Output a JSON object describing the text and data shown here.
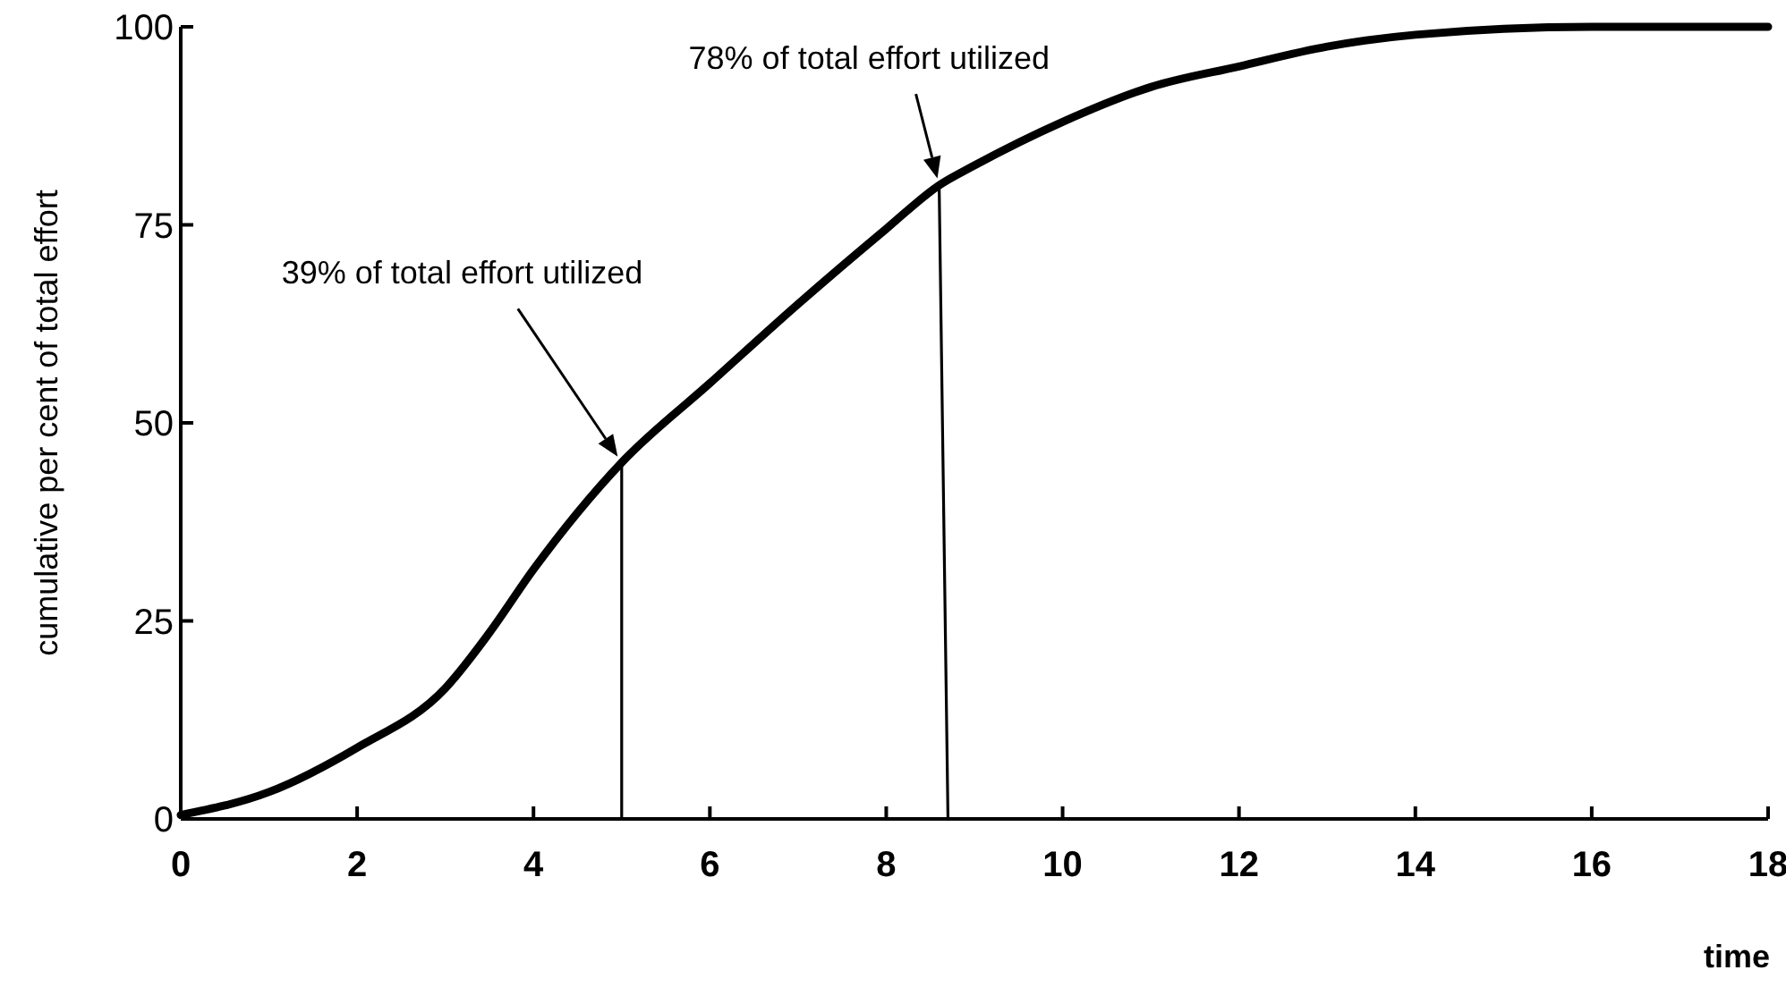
{
  "chart_data": {
    "type": "line",
    "xlabel": "time",
    "ylabel": "cumulative per cent of total effort",
    "xlim": [
      0,
      18
    ],
    "ylim": [
      0,
      100
    ],
    "xticks": [
      0,
      2,
      4,
      6,
      8,
      10,
      12,
      14,
      16,
      18
    ],
    "yticks": [
      0,
      25,
      50,
      75,
      100
    ],
    "grid": false,
    "marker": "none",
    "line_style": "solid",
    "series": [
      {
        "color": "#000000",
        "x": [
          0,
          1,
          2,
          3,
          3.5,
          4,
          5,
          6,
          7,
          8,
          8.6,
          9,
          10,
          11,
          12,
          13,
          14,
          16,
          18
        ],
        "values": [
          0.5,
          3.4,
          9,
          16.5,
          23.5,
          31.5,
          45,
          55,
          65,
          74.5,
          80,
          82.5,
          88,
          92.4,
          95,
          97.5,
          99,
          100,
          100
        ]
      },
      {
        "color": "#000000",
        "x": [
          5,
          5
        ],
        "values": [
          45,
          0
        ]
      },
      {
        "color": "#000000",
        "x": [
          8.6,
          8.7
        ],
        "values": [
          80,
          0
        ]
      }
    ],
    "annotations": [
      "39% of total effort utilized",
      "78% of total effort utilized"
    ]
  }
}
